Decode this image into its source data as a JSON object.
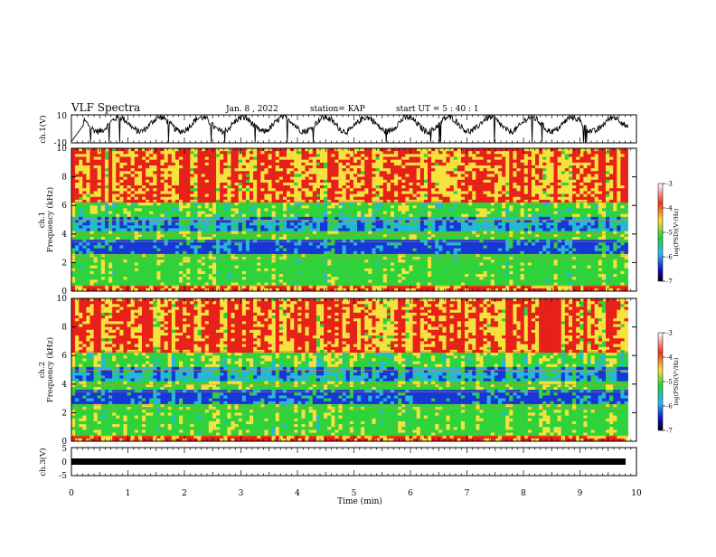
{
  "header": {
    "title": "VLF Spectra",
    "date": "Jan. 8 , 2022",
    "station": "station= KAP",
    "start": "start UT =  5 : 40 : 1"
  },
  "chart_data": [
    {
      "type": "line",
      "id": "ch1_waveform",
      "ylabel": "ch.1(V)",
      "ylim": [
        -10,
        10
      ],
      "yticks": [
        "10",
        "-10"
      ],
      "xlim": [
        0,
        10
      ],
      "description_free": true
    },
    {
      "type": "heatmap",
      "id": "ch1_spectrogram",
      "ylabel": "ch.1\nFrequency (kHz)",
      "ylabel_lines": [
        "ch.1",
        "Frequency (kHz)"
      ],
      "ylim": [
        0,
        10
      ],
      "yticks": [
        "0",
        "2",
        "4",
        "6",
        "8",
        "10"
      ],
      "xlim": [
        0,
        10
      ],
      "data_end_min": 9.85,
      "colorbar": {
        "label": "log(PSD)(V²/Hz)",
        "range": [
          -7,
          -3
        ],
        "ticks": [
          "-3",
          "-4",
          "-5",
          "-6",
          "-7"
        ]
      }
    },
    {
      "type": "heatmap",
      "id": "ch2_spectrogram",
      "ylabel_lines": [
        "ch.2",
        "Frequency (kHz)"
      ],
      "ylim": [
        0,
        10
      ],
      "yticks": [
        "0",
        "2",
        "4",
        "6",
        "8",
        "10"
      ],
      "xlim": [
        0,
        10
      ],
      "data_end_min": 9.85,
      "colorbar": {
        "label": "log(PSD)(V²/Hz)",
        "range": [
          -7,
          -3
        ],
        "ticks": [
          "-3",
          "-4",
          "-5",
          "-6",
          "-7"
        ]
      }
    },
    {
      "type": "line",
      "id": "ch3_waveform",
      "ylabel": "ch.3(V)",
      "ylim": [
        -5,
        5
      ],
      "yticks": [
        "5",
        "0",
        "-5"
      ],
      "xlim": [
        0,
        10
      ],
      "level": 0
    }
  ],
  "xaxis": {
    "label": "Time (min)",
    "ticks": [
      "0",
      "1",
      "2",
      "3",
      "4",
      "5",
      "6",
      "7",
      "8",
      "9",
      "10"
    ]
  },
  "colors": {
    "red": "#e8201a",
    "yellow": "#f5e23c",
    "green": "#2fd23a",
    "cyan": "#27b7d6",
    "blue": "#1636d8"
  }
}
